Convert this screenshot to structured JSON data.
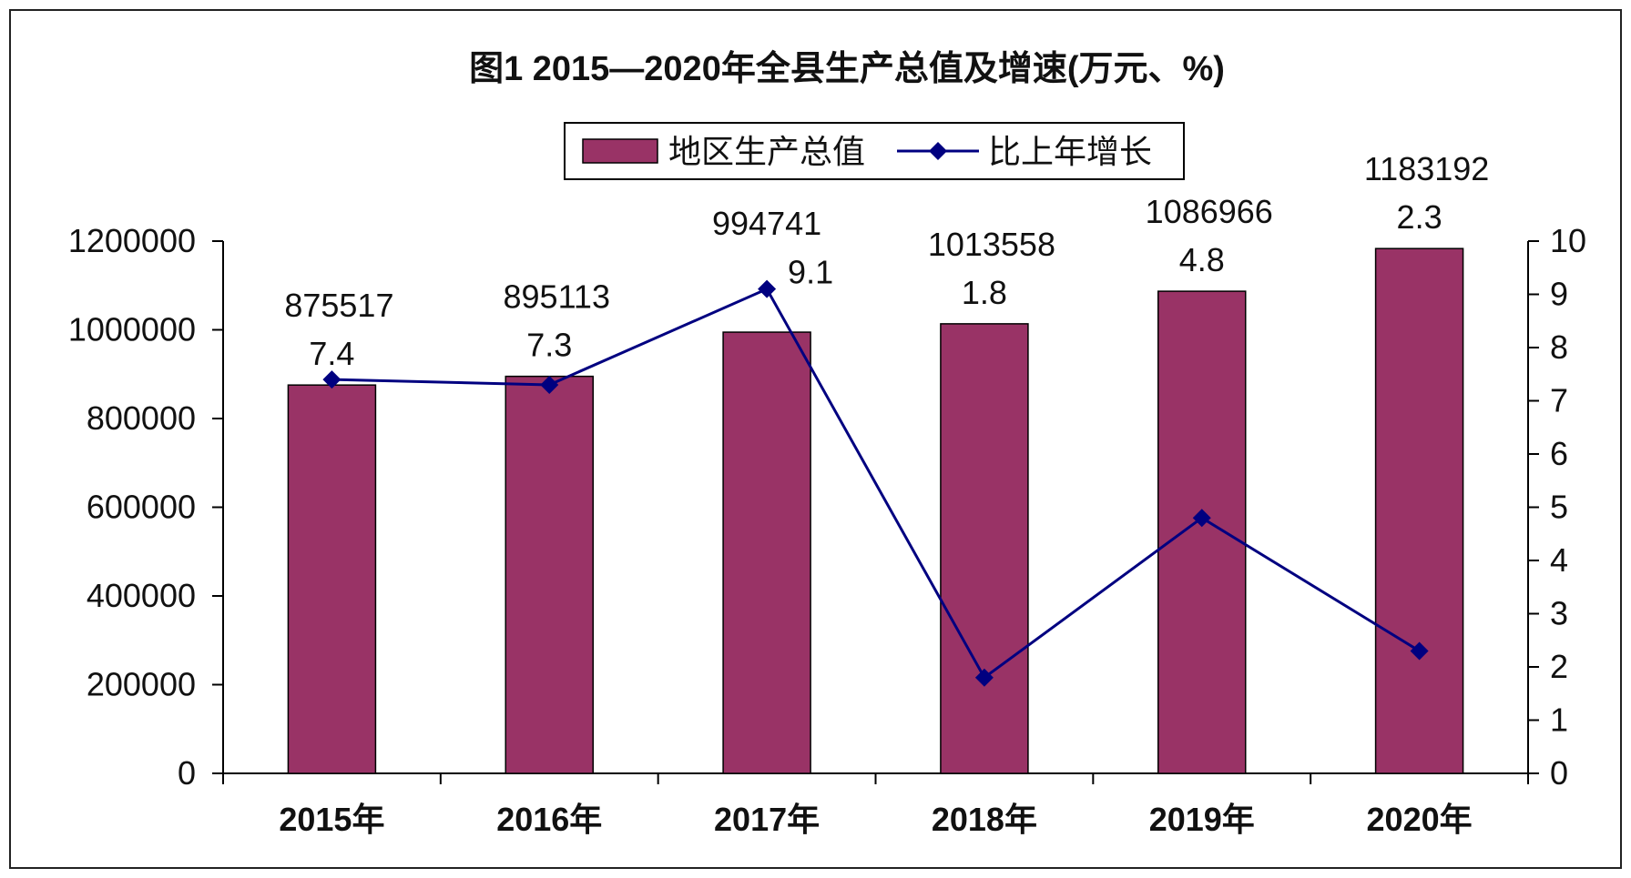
{
  "chart_data": {
    "type": "bar+line",
    "title": "图1  2015—2020年全县生产总值及增速(万元、%)",
    "categories": [
      "2015年",
      "2016年",
      "2017年",
      "2018年",
      "2019年",
      "2020年"
    ],
    "series": [
      {
        "name": "地区生产总值",
        "type": "bar",
        "axis": "left",
        "values": [
          875517,
          895113,
          994741,
          1013558,
          1086966,
          1183192
        ],
        "labels": [
          "875517",
          "895113",
          "994741",
          "1013558",
          "1086966",
          "1183192"
        ]
      },
      {
        "name": "比上年增长",
        "type": "line",
        "axis": "right",
        "values": [
          7.4,
          7.3,
          9.1,
          1.8,
          4.8,
          2.3
        ],
        "labels": [
          "7.4",
          "7.3",
          "9.1",
          "1.8",
          "4.8",
          "2.3"
        ]
      }
    ],
    "y_left": {
      "range": [
        0,
        1200000
      ],
      "ticks": [
        0,
        200000,
        400000,
        600000,
        800000,
        1000000,
        1200000
      ],
      "tick_labels": [
        "0",
        "200000",
        "400000",
        "600000",
        "800000",
        "1000000",
        "1200000"
      ]
    },
    "y_right": {
      "range": [
        0,
        10
      ],
      "ticks": [
        0,
        1,
        2,
        3,
        4,
        5,
        6,
        7,
        8,
        9,
        10
      ],
      "tick_labels": [
        "0",
        "1",
        "2",
        "3",
        "4",
        "5",
        "6",
        "7",
        "8",
        "9",
        "10"
      ]
    },
    "grid": false,
    "legend": "top-center",
    "colors": {
      "bar": "#993366",
      "line": "#000080"
    }
  }
}
